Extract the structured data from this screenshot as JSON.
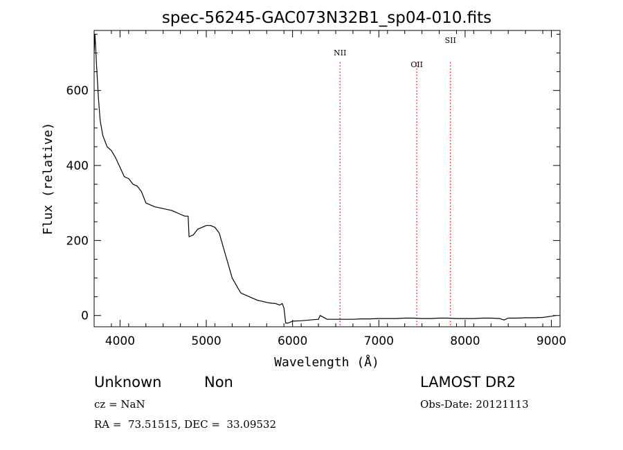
{
  "chart_data": {
    "type": "line",
    "title": "spec-56245-GAC073N32B1_sp04-010.fits",
    "xlabel": "Wavelength (Å)",
    "ylabel": "Flux (relative)",
    "xlim": [
      3700,
      9100
    ],
    "ylim": [
      -30,
      760
    ],
    "xticks": [
      4000,
      5000,
      6000,
      7000,
      8000,
      9000
    ],
    "yticks": [
      0,
      200,
      400,
      600
    ],
    "grid": false,
    "line_color": "#000000",
    "series": [
      {
        "x": [
          3700,
          3710,
          3730,
          3750,
          3770,
          3800,
          3850,
          3900,
          3950,
          4000,
          4050,
          4100,
          4150,
          4200,
          4250,
          4300,
          4400,
          4500,
          4600,
          4700,
          4750,
          4790,
          4800,
          4850,
          4900,
          4950,
          5000,
          5050,
          5100,
          5150,
          5200,
          5250,
          5300,
          5350,
          5400,
          5450,
          5500,
          5550,
          5600,
          5650,
          5700,
          5750,
          5800,
          5850,
          5880,
          5900,
          5920,
          5950,
          6000,
          6100,
          6200,
          6300,
          6320,
          6400,
          6500,
          6600,
          6700,
          6800,
          6900,
          7000,
          7100,
          7200,
          7300,
          7400,
          7500,
          7600,
          7700,
          7800,
          7900,
          8000,
          8100,
          8200,
          8300,
          8400,
          8450,
          8500,
          8600,
          8700,
          8800,
          8900,
          9000,
          9050
        ],
        "values": [
          700,
          750,
          660,
          580,
          520,
          480,
          450,
          440,
          420,
          395,
          370,
          365,
          350,
          345,
          330,
          300,
          290,
          285,
          280,
          270,
          265,
          265,
          210,
          215,
          230,
          235,
          240,
          240,
          235,
          220,
          180,
          140,
          100,
          80,
          60,
          55,
          50,
          45,
          40,
          38,
          35,
          33,
          32,
          28,
          32,
          20,
          -20,
          -20,
          -15,
          -14,
          -12,
          -10,
          0,
          -10,
          -10,
          -10,
          -10,
          -9,
          -9,
          -8,
          -8,
          -8,
          -7,
          -7,
          -8,
          -8,
          -7,
          -7,
          -8,
          -8,
          -8,
          -7,
          -7,
          -8,
          -12,
          -7,
          -7,
          -6,
          -6,
          -5,
          -2,
          0
        ]
      }
    ],
    "emission_lines": [
      {
        "label": "NII",
        "wavelength": 6550,
        "color": "#ff0000"
      },
      {
        "label": "OII",
        "wavelength": 7440,
        "color": "#ff0000"
      },
      {
        "label": "SII",
        "wavelength": 7830,
        "color": "#ff0000"
      }
    ]
  },
  "info": {
    "class": "Unknown",
    "subclass": "Non",
    "cz": "cz = NaN",
    "coords": "RA =  73.51515, DEC =  33.09532",
    "survey": "LAMOST DR2",
    "obs_date": "Obs-Date: 20121113"
  }
}
